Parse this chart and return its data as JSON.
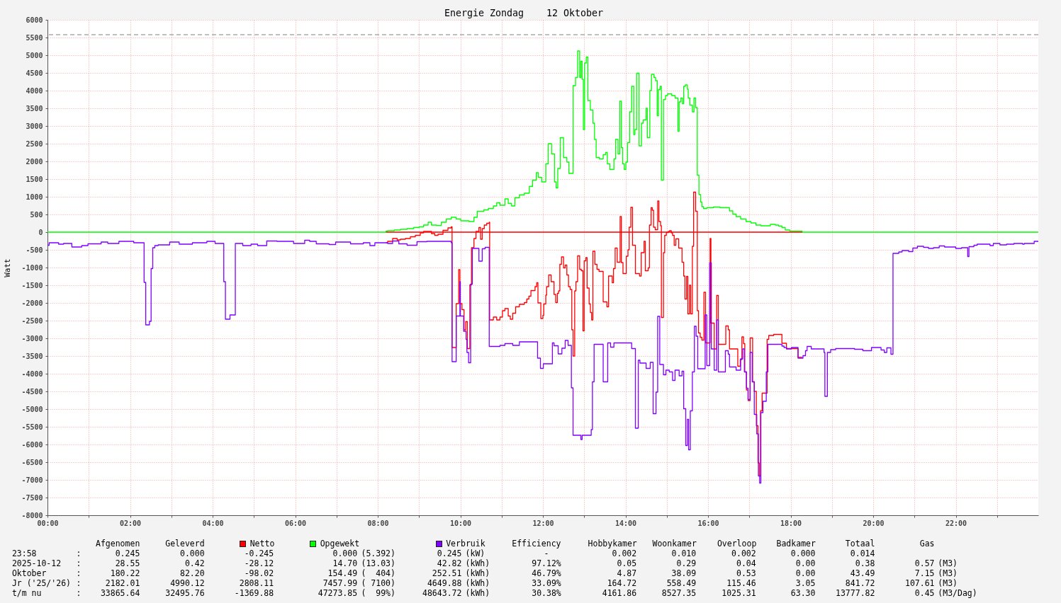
{
  "chart_data": {
    "type": "step",
    "title": "Energie Zondag    12 Oktober",
    "ylabel": "Watt",
    "xlim": [
      0,
      24
    ],
    "xticks": [
      {
        "value": 0,
        "label": "00:00"
      },
      {
        "value": 1,
        "label": null
      },
      {
        "value": 2,
        "label": "02:00"
      },
      {
        "value": 3,
        "label": null
      },
      {
        "value": 4,
        "label": "04:00"
      },
      {
        "value": 5,
        "label": null
      },
      {
        "value": 6,
        "label": "06:00"
      },
      {
        "value": 7,
        "label": null
      },
      {
        "value": 8,
        "label": "08:00"
      },
      {
        "value": 9,
        "label": null
      },
      {
        "value": 10,
        "label": "10:00"
      },
      {
        "value": 11,
        "label": null
      },
      {
        "value": 12,
        "label": "12:00"
      },
      {
        "value": 13,
        "label": null
      },
      {
        "value": 14,
        "label": "14:00"
      },
      {
        "value": 15,
        "label": null
      },
      {
        "value": 16,
        "label": "16:00"
      },
      {
        "value": 17,
        "label": null
      },
      {
        "value": 18,
        "label": "18:00"
      },
      {
        "value": 19,
        "label": null
      },
      {
        "value": 20,
        "label": "20:00"
      },
      {
        "value": 21,
        "label": null
      },
      {
        "value": 22,
        "label": "22:00"
      },
      {
        "value": 23,
        "label": null
      }
    ],
    "ylim": [
      -8000,
      6000
    ],
    "yticks": [
      -8000,
      -7500,
      -7000,
      -6500,
      -6000,
      -5500,
      -5000,
      -4500,
      -4000,
      -3500,
      -3000,
      -2500,
      -2000,
      -1500,
      -1000,
      -500,
      0,
      500,
      1000,
      1500,
      2000,
      2500,
      3000,
      3500,
      4000,
      4500,
      5000,
      5500,
      6000
    ],
    "grid": true,
    "legend": "bottom",
    "ref_lines": [
      {
        "axis": "y",
        "value": 5580,
        "color": "#808080",
        "line_style": "dashed"
      }
    ],
    "series": [
      {
        "name": "Netto",
        "color": "#ff0000",
        "x": [
          8.2,
          8.24,
          8.36,
          8.47,
          8.55,
          8.67,
          8.79,
          8.91,
          9.03,
          9.11,
          9.3,
          9.38,
          9.46,
          9.58,
          9.7,
          9.78,
          9.8,
          9.9,
          9.96,
          9.99,
          10.04,
          10.09,
          10.13,
          10.17,
          10.23,
          10.27,
          10.33,
          10.38,
          10.45,
          10.49,
          10.53,
          10.58,
          10.64,
          10.7,
          10.71,
          10.8,
          10.88,
          10.96,
          11.02,
          11.08,
          11.16,
          11.21,
          11.27,
          11.34,
          11.43,
          11.55,
          11.61,
          11.66,
          11.71,
          11.81,
          11.85,
          11.88,
          11.95,
          12.0,
          12.02,
          12.07,
          12.09,
          12.14,
          12.2,
          12.27,
          12.31,
          12.35,
          12.38,
          12.41,
          12.45,
          12.5,
          12.54,
          12.58,
          12.62,
          12.66,
          12.7,
          12.73,
          12.77,
          12.8,
          12.84,
          12.89,
          12.93,
          12.97,
          13.0,
          13.04,
          13.07,
          13.12,
          13.15,
          13.18,
          13.21,
          13.26,
          13.31,
          13.36,
          13.46,
          13.55,
          13.59,
          13.68,
          13.71,
          13.75,
          13.8,
          13.87,
          13.9,
          13.94,
          14.02,
          14.06,
          14.09,
          14.13,
          14.17,
          14.24,
          14.34,
          14.38,
          14.45,
          14.48,
          14.55,
          14.58,
          14.62,
          14.65,
          14.68,
          14.72,
          14.78,
          14.81,
          14.85,
          14.87,
          14.92,
          14.95,
          14.99,
          15.04,
          15.07,
          15.11,
          15.14,
          15.18,
          15.22,
          15.29,
          15.37,
          15.41,
          15.44,
          15.48,
          15.51,
          15.55,
          15.58,
          15.62,
          15.65,
          15.7,
          15.74,
          15.77,
          15.81,
          15.85,
          15.9,
          15.94,
          16.05,
          16.07,
          16.15,
          16.21,
          16.25,
          16.43,
          16.49,
          16.52,
          16.72,
          16.78,
          16.82,
          16.86,
          16.89,
          16.93,
          16.97,
          17.02,
          17.08,
          17.12,
          17.17,
          17.21,
          17.24,
          17.27,
          17.31,
          17.43,
          17.47,
          17.59,
          17.79,
          17.9,
          18.18,
          18.28
        ],
        "values": [
          -300,
          -260,
          -180,
          -220,
          -200,
          -180,
          -130,
          -90,
          -20,
          20,
          -40,
          -90,
          -60,
          50,
          120,
          150,
          -3260,
          -2020,
          -1060,
          -2020,
          -2190,
          -2760,
          -2530,
          -3290,
          -1490,
          -440,
          -180,
          20,
          130,
          -200,
          100,
          200,
          250,
          280,
          -2480,
          -2400,
          -2480,
          -2400,
          -2220,
          -2160,
          -2370,
          -2460,
          -2290,
          -2110,
          -2040,
          -1990,
          -1890,
          -1810,
          -1650,
          -1540,
          -1430,
          -2000,
          -2440,
          -2350,
          -2030,
          -1780,
          -1540,
          -1210,
          -1400,
          -1760,
          -1990,
          -1730,
          -1660,
          -910,
          -700,
          -1010,
          -930,
          -1210,
          -1540,
          -1620,
          -2760,
          -3500,
          -1660,
          -1400,
          -670,
          -1050,
          -1090,
          -2790,
          -810,
          -720,
          -1580,
          -2030,
          -2270,
          -2480,
          -540,
          -910,
          -1050,
          -1110,
          -1970,
          -2110,
          -1240,
          -1430,
          -1030,
          -450,
          -850,
          440,
          -860,
          -1170,
          -680,
          -500,
          140,
          700,
          -370,
          -1170,
          -1240,
          -580,
          -260,
          -1090,
          -1010,
          200,
          690,
          620,
          140,
          70,
          880,
          300,
          180,
          -2410,
          -580,
          -90,
          -10,
          20,
          40,
          -20,
          -90,
          -370,
          -190,
          -450,
          -850,
          -1240,
          -1890,
          -1250,
          -2310,
          -1500,
          -2310,
          -400,
          1130,
          590,
          -2220,
          -2850,
          -2970,
          -3050,
          -1700,
          -3130,
          -180,
          -2570,
          -3300,
          -1790,
          -3170,
          -2650,
          -2760,
          -3300,
          -3790,
          -3600,
          -2960,
          -3150,
          -3950,
          -4460,
          -4760,
          -2990,
          -4230,
          -4500,
          -5470,
          -6520,
          -6890,
          -5050,
          -4550,
          -3030,
          -2920,
          -2890,
          -3140,
          -3290,
          -3540,
          -3540
        ]
      },
      {
        "name": "Opgewekt",
        "color": "#00ff00",
        "x": [
          0,
          8.2,
          8.24,
          8.4,
          8.55,
          8.71,
          8.87,
          9.0,
          9.11,
          9.22,
          9.3,
          9.42,
          9.54,
          9.66,
          9.78,
          9.9,
          10.01,
          10.21,
          10.33,
          10.41,
          10.57,
          10.68,
          10.8,
          10.88,
          10.96,
          11.08,
          11.16,
          11.24,
          11.32,
          11.43,
          11.55,
          11.67,
          11.75,
          11.84,
          11.89,
          11.97,
          12.07,
          12.13,
          12.21,
          12.28,
          12.32,
          12.36,
          12.42,
          12.5,
          12.58,
          12.63,
          12.73,
          12.79,
          12.84,
          12.89,
          12.92,
          12.95,
          12.98,
          13.01,
          13.05,
          13.09,
          13.15,
          13.21,
          13.25,
          13.29,
          13.37,
          13.46,
          13.52,
          13.56,
          13.62,
          13.72,
          13.76,
          13.82,
          13.86,
          13.9,
          13.93,
          13.97,
          14.01,
          14.05,
          14.1,
          14.15,
          14.2,
          14.23,
          14.27,
          14.33,
          14.39,
          14.43,
          14.5,
          14.53,
          14.59,
          14.63,
          14.69,
          14.73,
          14.77,
          14.8,
          14.84,
          14.87,
          14.92,
          14.97,
          15.02,
          15.12,
          15.2,
          15.27,
          15.3,
          15.34,
          15.38,
          15.41,
          15.45,
          15.5,
          15.52,
          15.56,
          15.62,
          15.66,
          15.7,
          15.74,
          15.78,
          15.82,
          15.85,
          15.89,
          15.97,
          16.13,
          16.29,
          16.52,
          16.6,
          16.68,
          16.79,
          16.92,
          17.04,
          17.16,
          17.28,
          17.51,
          17.63,
          17.71,
          17.79,
          17.87,
          17.98,
          18.28,
          24
        ],
        "values": [
          0,
          30,
          40,
          60,
          80,
          100,
          130,
          150,
          200,
          280,
          200,
          190,
          280,
          370,
          420,
          370,
          320,
          300,
          420,
          590,
          630,
          670,
          740,
          830,
          760,
          940,
          810,
          740,
          970,
          1050,
          1100,
          1290,
          1470,
          1680,
          1550,
          1420,
          1930,
          2500,
          2210,
          1420,
          1250,
          1800,
          2670,
          2110,
          1980,
          1660,
          4140,
          4370,
          5120,
          4370,
          4830,
          4320,
          2900,
          4780,
          4950,
          3720,
          3450,
          3080,
          2620,
          2110,
          2070,
          2190,
          2250,
          1930,
          1770,
          2070,
          2620,
          2210,
          3700,
          2390,
          1930,
          1770,
          1980,
          2530,
          3400,
          4120,
          2760,
          2900,
          4490,
          2440,
          3080,
          3170,
          3500,
          2670,
          4000,
          4460,
          4370,
          4280,
          3290,
          4030,
          4120,
          1470,
          3750,
          3860,
          3910,
          3860,
          3790,
          2850,
          3680,
          3790,
          3630,
          4120,
          4160,
          4040,
          3790,
          3590,
          3400,
          3790,
          3520,
          1610,
          1060,
          850,
          720,
          670,
          690,
          710,
          690,
          600,
          510,
          440,
          370,
          300,
          260,
          200,
          180,
          220,
          200,
          170,
          130,
          60,
          30,
          0,
          0
        ]
      },
      {
        "name": "Verbruik",
        "color": "#7f00ff",
        "x": [
          0,
          0.04,
          0.27,
          0.39,
          0.59,
          0.83,
          0.98,
          1.3,
          1.46,
          1.73,
          2.09,
          2.34,
          2.38,
          2.47,
          2.51,
          2.55,
          2.6,
          2.68,
          2.96,
          3.19,
          3.51,
          3.86,
          4.06,
          4.27,
          4.31,
          4.42,
          4.55,
          4.73,
          4.93,
          5.09,
          5.31,
          5.56,
          5.96,
          6.23,
          6.35,
          6.51,
          6.82,
          6.98,
          7.34,
          7.65,
          7.81,
          7.93,
          8.24,
          8.36,
          8.51,
          8.71,
          8.95,
          9.19,
          9.78,
          9.8,
          9.9,
          9.99,
          10.0,
          10.08,
          10.14,
          10.16,
          10.2,
          10.25,
          10.29,
          10.45,
          10.53,
          10.6,
          10.7,
          10.96,
          11.08,
          11.27,
          11.43,
          11.87,
          11.94,
          12.01,
          12.23,
          12.27,
          12.37,
          12.46,
          12.54,
          12.61,
          12.69,
          12.73,
          12.92,
          12.95,
          13.17,
          13.2,
          13.24,
          13.46,
          13.57,
          13.64,
          13.72,
          14.15,
          14.24,
          14.31,
          14.35,
          14.5,
          14.6,
          14.67,
          14.74,
          14.78,
          14.83,
          14.92,
          14.98,
          15.06,
          15.14,
          15.2,
          15.3,
          15.37,
          15.41,
          15.46,
          15.5,
          15.53,
          15.57,
          15.62,
          15.67,
          15.71,
          15.75,
          15.93,
          15.97,
          16.04,
          16.08,
          16.15,
          16.21,
          16.25,
          16.42,
          16.49,
          16.52,
          16.68,
          16.79,
          16.84,
          16.88,
          16.93,
          16.97,
          17.02,
          17.07,
          17.12,
          17.18,
          17.22,
          17.25,
          17.28,
          17.33,
          17.41,
          17.45,
          17.79,
          17.84,
          17.9,
          18.02,
          18.18,
          18.3,
          18.36,
          18.4,
          18.5,
          18.81,
          18.83,
          18.89,
          18.97,
          19.09,
          19.55,
          19.75,
          19.96,
          20.07,
          20.19,
          20.27,
          20.33,
          20.43,
          20.48,
          20.62,
          20.7,
          20.86,
          20.96,
          21.07,
          21.22,
          21.34,
          21.46,
          21.6,
          21.73,
          22.0,
          22.14,
          22.29,
          22.32,
          22.44,
          22.52,
          22.83,
          22.91,
          23.07,
          23.23,
          23.41,
          23.62,
          23.66,
          23.9,
          24
        ],
        "values": [
          -370,
          -300,
          -340,
          -320,
          -420,
          -380,
          -330,
          -280,
          -320,
          -260,
          -300,
          -1420,
          -2620,
          -2520,
          -1030,
          -440,
          -380,
          -360,
          -280,
          -340,
          -300,
          -260,
          -320,
          -1400,
          -2460,
          -2340,
          -320,
          -380,
          -340,
          -380,
          -250,
          -260,
          -320,
          -230,
          -260,
          -330,
          -350,
          -280,
          -330,
          -300,
          -380,
          -300,
          -320,
          -250,
          -330,
          -370,
          -270,
          -260,
          -300,
          -3660,
          -2370,
          -1400,
          -2370,
          -2800,
          -3030,
          -3400,
          -3690,
          -1470,
          -460,
          -820,
          -470,
          -430,
          -3230,
          -3200,
          -3150,
          -3200,
          -3100,
          -3560,
          -3850,
          -3720,
          -3130,
          -3210,
          -3440,
          -3280,
          -3060,
          -3200,
          -4400,
          -5740,
          -5860,
          -5740,
          -5580,
          -4230,
          -3170,
          -4230,
          -3130,
          -3250,
          -3130,
          -3290,
          -5540,
          -3620,
          -3700,
          -3850,
          -3680,
          -5130,
          -4520,
          -2380,
          -3740,
          -4030,
          -3900,
          -3950,
          -4190,
          -3900,
          -4060,
          -3930,
          -4990,
          -6030,
          -5290,
          -6150,
          -5050,
          -3950,
          -2660,
          -2940,
          -3860,
          -2340,
          -3770,
          -870,
          -3300,
          -3900,
          -2480,
          -3950,
          -3350,
          -3450,
          -3810,
          -3900,
          -3580,
          -3300,
          -3950,
          -4410,
          -4730,
          -3400,
          -4230,
          -5150,
          -5700,
          -6890,
          -7090,
          -5100,
          -4780,
          -3950,
          -3170,
          -3220,
          -3260,
          -3300,
          -3260,
          -3560,
          -3490,
          -3350,
          -3230,
          -3300,
          -3400,
          -4640,
          -3400,
          -3320,
          -3290,
          -3310,
          -3350,
          -3260,
          -3260,
          -3330,
          -3400,
          -3270,
          -3450,
          -600,
          -560,
          -520,
          -550,
          -450,
          -400,
          -430,
          -460,
          -440,
          -390,
          -420,
          -460,
          -440,
          -690,
          -410,
          -370,
          -340,
          -380,
          -320,
          -360,
          -340,
          -320,
          -340,
          -320,
          -260,
          -260
        ]
      },
      {
        "color": "#ff0000",
        "x": [
          8.2,
          18.28
        ],
        "values": [
          0,
          0
        ]
      }
    ],
    "annotations": [
      "Afgenomen",
      "Geleverd",
      "Efficiency",
      "Hobbykamer",
      "Woonkamer",
      "Overloop",
      "Badkamer",
      "Totaal",
      "Gas",
      "23:58",
      ":",
      "0.245",
      "0.000",
      "-0.245",
      "0.000",
      "(5.392)",
      "0.245",
      "(kW)",
      "-",
      "0.002",
      "0.010",
      "0.002",
      "0.000",
      "0.014",
      "2025-10-12",
      ":",
      "28.55",
      "0.42",
      "-28.12",
      "14.70",
      "(13.03)",
      "42.82",
      "(kWh)",
      "97.12%",
      "0.05",
      "0.29",
      "0.04",
      "0.00",
      "0.38",
      "0.57",
      "(M3)",
      "Oktober",
      ":",
      "180.22",
      "82.20",
      "-98.02",
      "154.49",
      "(  404)",
      "252.51",
      "(kWh)",
      "46.79%",
      "4.87",
      "38.09",
      "0.53",
      "0.00",
      "43.49",
      "7.15",
      "(M3)",
      "Jr ('25/'26)",
      ":",
      "2182.01",
      "4990.12",
      "2808.11",
      "7457.99",
      "( 7100)",
      "4649.88",
      "(kWh)",
      "33.09%",
      "164.72",
      "558.49",
      "115.46",
      "3.05",
      "841.72",
      "107.61",
      "(M3)",
      "t/m nu",
      ":",
      "33865.64",
      "32495.76",
      "-1369.88",
      "47273.85",
      "(  99%)",
      "48643.72",
      "(kWh)",
      "30.38%",
      "4161.86",
      "8527.35",
      "1025.31",
      "63.30",
      "13777.82",
      "0.45",
      "(M3/Dag)"
    ]
  }
}
